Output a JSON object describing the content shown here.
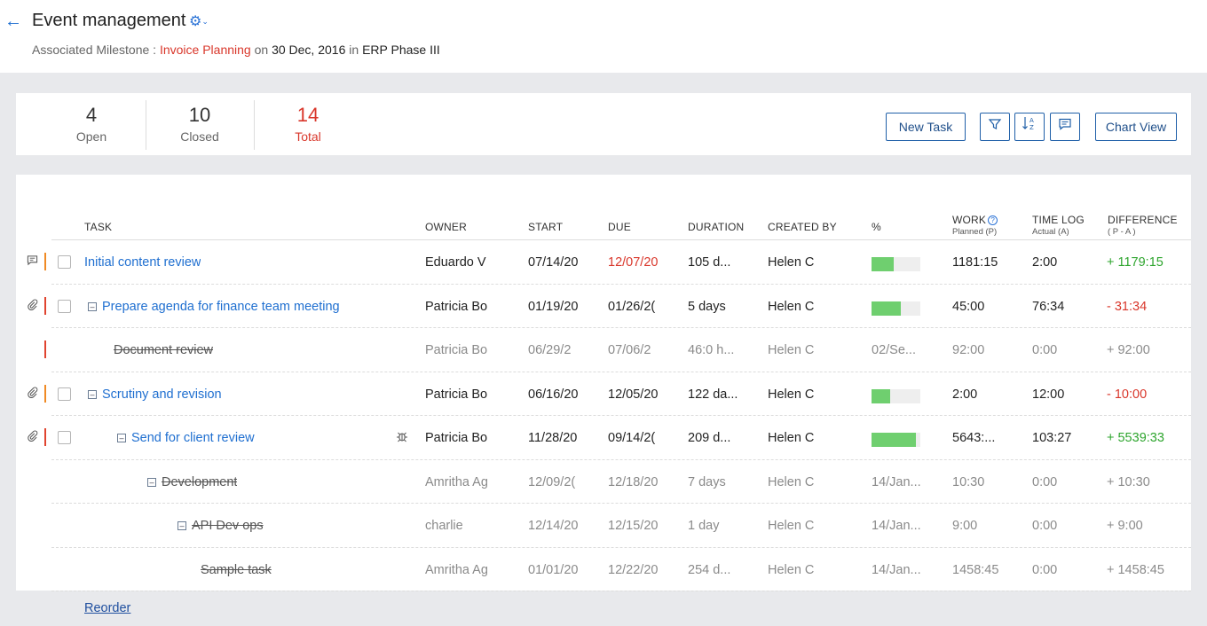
{
  "header": {
    "back_icon": "arrow-left-icon",
    "title": "Event management",
    "settings_icon": "gear-dropdown-icon",
    "milestone_label": "Associated Milestone :",
    "milestone_name": "Invoice Planning",
    "on_word": "on",
    "milestone_date": "30 Dec, 2016",
    "in_word": "in",
    "project": "ERP Phase III"
  },
  "summary": {
    "open_count": "4",
    "open_label": "Open",
    "closed_count": "10",
    "closed_label": "Closed",
    "total_count": "14",
    "total_label": "Total"
  },
  "toolbar": {
    "new_task": "New Task",
    "filter_icon": "filter-icon",
    "sort_icon": "sort-az-icon",
    "comment_icon": "comment-icon",
    "chart_view": "Chart View"
  },
  "columns": {
    "task": "TASK",
    "owner": "OWNER",
    "start": "START",
    "due": "DUE",
    "duration": "DURATION",
    "created_by": "CREATED BY",
    "percent": "%",
    "work": "WORK",
    "work_sub": "Planned (P)",
    "time_log": "TIME LOG",
    "time_log_sub": "Actual (A)",
    "difference": "DIFFERENCE",
    "difference_sub": "( P - A )"
  },
  "rows": [
    {
      "task": "Initial content review",
      "owner": "Eduardo V",
      "start": "07/14/20",
      "due": "12/07/20",
      "duration": "105 d...",
      "created_by": "Helen C",
      "progress_pct": 45,
      "work": "1181:15",
      "time_log": "2:00",
      "difference": "+ 1179:15",
      "row_icon": "comment-icon",
      "priority_color": "#f08a24",
      "closed": false
    },
    {
      "task": "Prepare agenda for finance team meeting",
      "owner": "Patricia Bo",
      "start": "01/19/20",
      "due": "01/26/2(",
      "duration": "5 days",
      "created_by": "Helen C",
      "progress_pct": 60,
      "work": "45:00",
      "time_log": "76:34",
      "difference": "- 31:34",
      "row_icon": "paperclip-icon",
      "priority_color": "#e0442f",
      "closed": false
    },
    {
      "task": "Document review",
      "owner": "Patricia Bo",
      "start": "06/29/2",
      "due": "07/06/2",
      "duration": "46:0 h...",
      "created_by": "Helen C",
      "percent_text": "02/Se...",
      "work": "92:00",
      "time_log": "0:00",
      "difference": "+ 92:00",
      "priority_color": "#e0442f",
      "closed": true
    },
    {
      "task": "Scrutiny and revision",
      "owner": "Patricia Bo",
      "start": "06/16/20",
      "due": "12/05/20",
      "duration": "122 da...",
      "created_by": "Helen C",
      "progress_pct": 38,
      "work": "2:00",
      "time_log": "12:00",
      "difference": "- 10:00",
      "row_icon": "paperclip-icon",
      "priority_color": "#f08a24",
      "closed": false
    },
    {
      "task": "Send for client review",
      "owner": "Patricia Bo",
      "start": "11/28/20",
      "due": "09/14/2(",
      "duration": "209 d...",
      "created_by": "Helen C",
      "progress_pct": 90,
      "work": "5643:...",
      "time_log": "103:27",
      "difference": "+ 5539:33",
      "row_icon": "paperclip-icon",
      "bug_icon": "bug-icon",
      "priority_color": "#e0442f",
      "closed": false
    },
    {
      "task": "Development",
      "owner": "Amritha Ag",
      "start": "12/09/2(",
      "due": "12/18/20",
      "duration": "7 days",
      "created_by": "Helen C",
      "percent_text": "14/Jan...",
      "work": "10:30",
      "time_log": "0:00",
      "difference": "+ 10:30",
      "closed": true
    },
    {
      "task": "API  Dev ops",
      "owner": "charlie",
      "start": "12/14/20",
      "due": "12/15/20",
      "duration": "1 day",
      "created_by": "Helen C",
      "percent_text": "14/Jan...",
      "work": "9:00",
      "time_log": "0:00",
      "difference": "+ 9:00",
      "closed": true
    },
    {
      "task": "Sample task",
      "owner": "Amritha Ag",
      "start": "01/01/20",
      "due": "12/22/20",
      "duration": "254 d...",
      "created_by": "Helen C",
      "percent_text": "14/Jan...",
      "work": "1458:45",
      "time_log": "0:00",
      "difference": "+ 1458:45",
      "closed": true
    }
  ],
  "colors": {
    "accent": "#1f6fd0",
    "danger": "#d9372b",
    "success": "#2ea52e",
    "progress": "#6fcf6f"
  },
  "footer": {
    "reorder": "Reorder"
  }
}
